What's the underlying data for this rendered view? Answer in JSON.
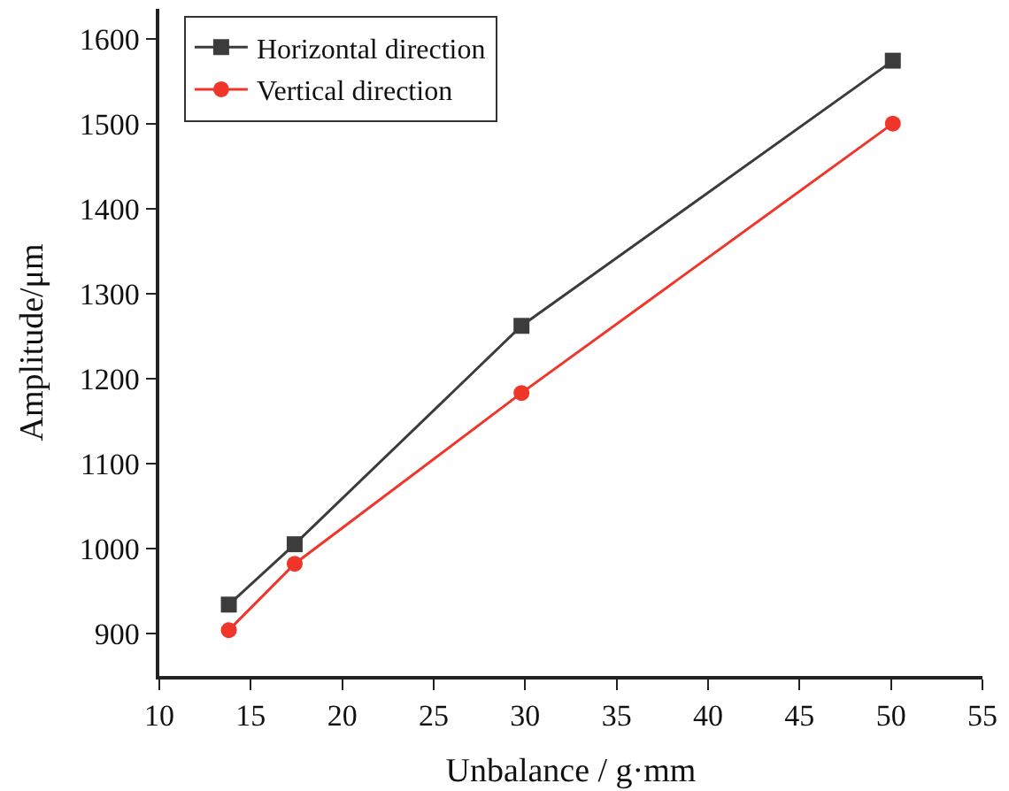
{
  "chart_data": {
    "type": "line",
    "xlabel": "Unbalance / g·mm",
    "ylabel": "Amplitude/μm",
    "x": [
      13.8,
      17.4,
      29.8,
      50.1
    ],
    "series": [
      {
        "name": "Horizontal direction",
        "color": "#3c3c3c",
        "marker": "square",
        "values": [
          934,
          1005,
          1262,
          1574
        ]
      },
      {
        "name": "Vertical direction",
        "color": "#f0352a",
        "marker": "circle",
        "values": [
          904,
          982,
          1183,
          1500
        ]
      }
    ],
    "xlim": [
      10,
      55
    ],
    "xticks": [
      10,
      15,
      20,
      25,
      30,
      35,
      40,
      45,
      50,
      55
    ],
    "ylim": [
      850,
      1635
    ],
    "yticks": [
      900,
      1000,
      1100,
      1200,
      1300,
      1400,
      1500,
      1600
    ],
    "legend": "top left",
    "line_style": "solid"
  }
}
